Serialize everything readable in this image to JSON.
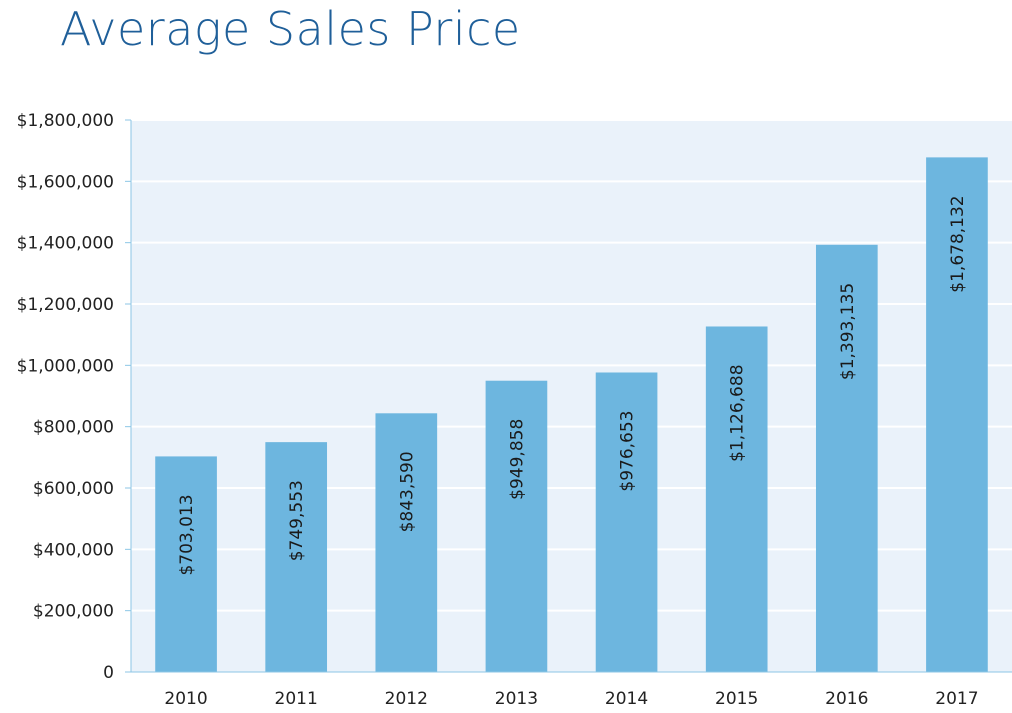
{
  "chart_data": {
    "type": "bar",
    "title": "Average Sales Price",
    "categories": [
      "2010",
      "2011",
      "2012",
      "2013",
      "2014",
      "2015",
      "2016",
      "2017"
    ],
    "values": [
      703013,
      749553,
      843590,
      949858,
      976653,
      1126688,
      1393135,
      1678132
    ],
    "data_labels": [
      "$703,013",
      "$749,553",
      "$843,590",
      "$949,858",
      "$976,653",
      "$1,126,688",
      "$1,393,135",
      "$1,678,132"
    ],
    "y_ticks": [
      "0",
      "$200,000",
      "$400,000",
      "$600,000",
      "$800,000",
      "$1,000,000",
      "$1,200,000",
      "$1,400,000",
      "$1,600,000",
      "$1,800,000"
    ],
    "y_tick_values": [
      0,
      200000,
      400000,
      600000,
      800000,
      1000000,
      1200000,
      1400000,
      1600000,
      1800000
    ],
    "ylim": [
      0,
      1800000
    ],
    "xlabel": "",
    "ylabel": "",
    "grid": true,
    "legend": "none",
    "colors": {
      "bar": "#6db6df",
      "plot_background": "#eaf2fa",
      "gridline": "#ffffff",
      "axis_line": "#8cc6e6",
      "title": "#1f5f99"
    }
  }
}
